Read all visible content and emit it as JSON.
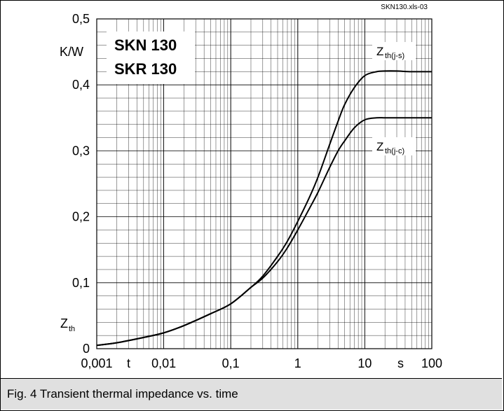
{
  "chart_data": {
    "type": "line",
    "file_label": "SKN130.xls-03",
    "title_lines": [
      "SKN 130",
      "SKR 130"
    ],
    "ylabel": "Z",
    "ylabel_sub": "th",
    "yunit": "K/W",
    "xlabel": "t",
    "xunit": "s",
    "x_scale": "log",
    "xlim": [
      0.001,
      100
    ],
    "ylim": [
      0,
      0.5
    ],
    "grid": true,
    "x_ticks": [
      "0,001",
      "0,01",
      "0,1",
      "1",
      "10",
      "100"
    ],
    "y_ticks": [
      "0",
      "0,1",
      "0,2",
      "0,3",
      "0,4",
      "0,5"
    ],
    "series": [
      {
        "name": "Z",
        "name_sub": "th(j-s)",
        "x": [
          0.001,
          0.002,
          0.005,
          0.01,
          0.02,
          0.05,
          0.1,
          0.2,
          0.3,
          0.5,
          0.7,
          1,
          1.5,
          2,
          3,
          4,
          5,
          7,
          10,
          15,
          20,
          30,
          50,
          100
        ],
        "y": [
          0.005,
          0.009,
          0.017,
          0.024,
          0.035,
          0.053,
          0.068,
          0.093,
          0.11,
          0.14,
          0.163,
          0.193,
          0.23,
          0.26,
          0.31,
          0.345,
          0.37,
          0.396,
          0.414,
          0.42,
          0.421,
          0.421,
          0.42,
          0.42
        ]
      },
      {
        "name": "Z",
        "name_sub": "th(j-c)",
        "x": [
          0.001,
          0.002,
          0.005,
          0.01,
          0.02,
          0.05,
          0.1,
          0.2,
          0.3,
          0.5,
          0.7,
          1,
          1.5,
          2,
          3,
          4,
          5,
          7,
          10,
          15,
          20,
          30,
          50,
          100
        ],
        "y": [
          0.005,
          0.009,
          0.017,
          0.024,
          0.035,
          0.053,
          0.068,
          0.093,
          0.107,
          0.132,
          0.153,
          0.18,
          0.213,
          0.237,
          0.275,
          0.3,
          0.315,
          0.335,
          0.347,
          0.35,
          0.35,
          0.35,
          0.35,
          0.35
        ]
      }
    ]
  },
  "caption": "Fig. 4 Transient thermal impedance vs. time"
}
